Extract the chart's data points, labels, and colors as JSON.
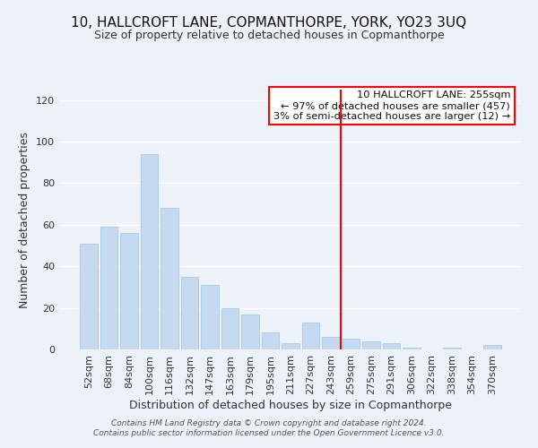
{
  "title": "10, HALLCROFT LANE, COPMANTHORPE, YORK, YO23 3UQ",
  "subtitle": "Size of property relative to detached houses in Copmanthorpe",
  "xlabel": "Distribution of detached houses by size in Copmanthorpe",
  "ylabel": "Number of detached properties",
  "bar_labels": [
    "52sqm",
    "68sqm",
    "84sqm",
    "100sqm",
    "116sqm",
    "132sqm",
    "147sqm",
    "163sqm",
    "179sqm",
    "195sqm",
    "211sqm",
    "227sqm",
    "243sqm",
    "259sqm",
    "275sqm",
    "291sqm",
    "306sqm",
    "322sqm",
    "338sqm",
    "354sqm",
    "370sqm"
  ],
  "bar_values": [
    51,
    59,
    56,
    94,
    68,
    35,
    31,
    20,
    17,
    8,
    3,
    13,
    6,
    5,
    4,
    3,
    1,
    0,
    1,
    0,
    2
  ],
  "bar_color": "#c5d9f0",
  "bar_edge_color": "#a8c8e8",
  "reference_line_color": "red",
  "reference_line_x": 13.0,
  "ylim": [
    0,
    125
  ],
  "yticks": [
    0,
    20,
    40,
    60,
    80,
    100,
    120
  ],
  "legend_title": "10 HALLCROFT LANE: 255sqm",
  "legend_line1": "← 97% of detached houses are smaller (457)",
  "legend_line2": "3% of semi-detached houses are larger (12) →",
  "legend_box_color": "white",
  "legend_box_edge": "red",
  "footer_line1": "Contains HM Land Registry data © Crown copyright and database right 2024.",
  "footer_line2": "Contains public sector information licensed under the Open Government Licence v3.0.",
  "background_color": "#edf2f9",
  "grid_color": "white",
  "title_fontsize": 11,
  "subtitle_fontsize": 9,
  "xlabel_fontsize": 9,
  "ylabel_fontsize": 9,
  "tick_fontsize": 8
}
